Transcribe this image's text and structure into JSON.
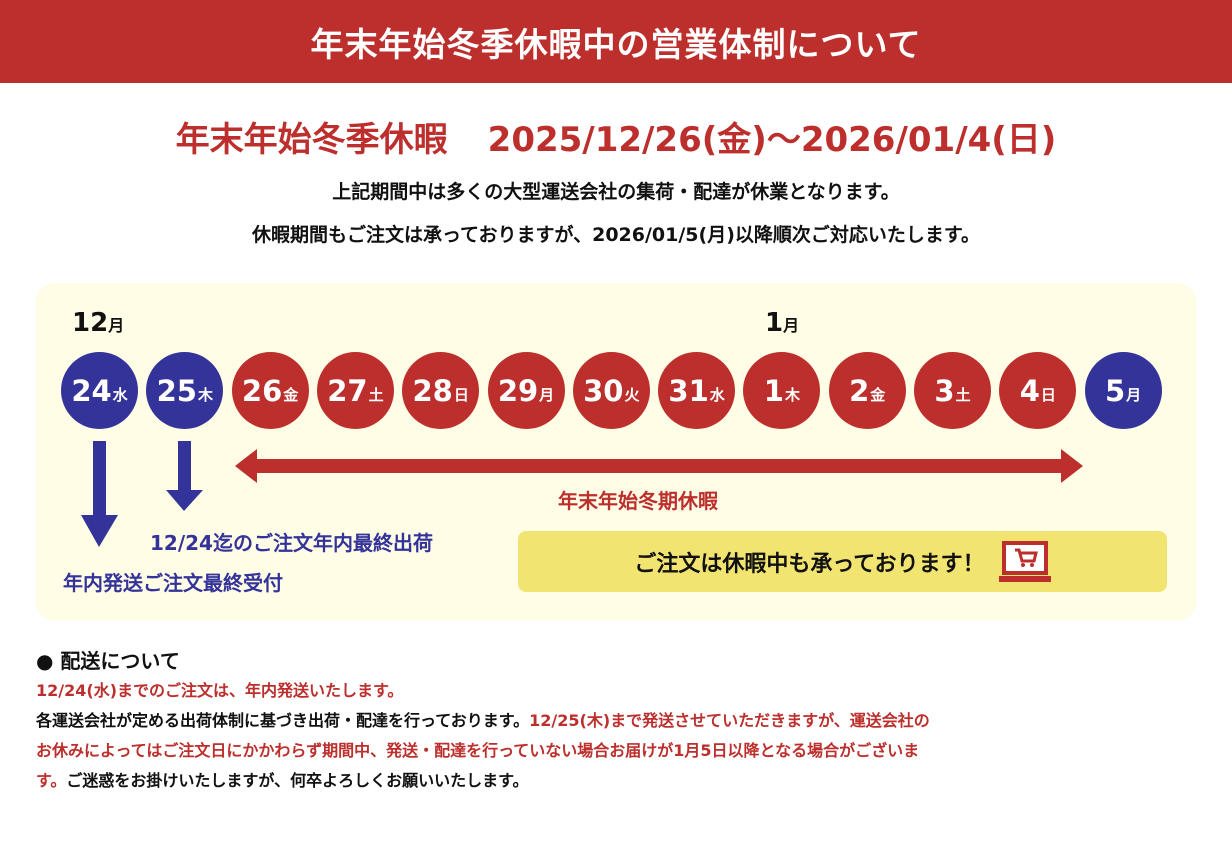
{
  "banner": {
    "title": "年末年始冬季休暇中の営業体制について"
  },
  "period": {
    "label": "年末年始冬季休暇",
    "dates": "2025/12/26(金)〜2026/01/4(日)"
  },
  "intro": [
    "上記期間中は多くの大型運送会社の集荷・配達が休業となります。",
    "休暇期間もご注文は承っておりますが、2026/01/5(月)以降順次ご対応いたします。"
  ],
  "calendar": {
    "months": [
      {
        "num": "12",
        "unit": "月"
      },
      {
        "num": "1",
        "unit": "月"
      }
    ],
    "days": [
      {
        "d": "24",
        "w": "水",
        "type": "blue"
      },
      {
        "d": "25",
        "w": "木",
        "type": "blue"
      },
      {
        "d": "26",
        "w": "金",
        "type": "red"
      },
      {
        "d": "27",
        "w": "土",
        "type": "red"
      },
      {
        "d": "28",
        "w": "日",
        "type": "red"
      },
      {
        "d": "29",
        "w": "月",
        "type": "red"
      },
      {
        "d": "30",
        "w": "火",
        "type": "red"
      },
      {
        "d": "31",
        "w": "水",
        "type": "red"
      },
      {
        "d": "1",
        "w": "木",
        "type": "red"
      },
      {
        "d": "2",
        "w": "金",
        "type": "red"
      },
      {
        "d": "3",
        "w": "土",
        "type": "red"
      },
      {
        "d": "4",
        "w": "日",
        "type": "red"
      },
      {
        "d": "5",
        "w": "月",
        "type": "blue"
      }
    ],
    "holiday_label": "年末年始冬期休暇",
    "last_ship": "12/24迄のご注文年内最終出荷",
    "last_accept": "年内発送ご注文最終受付",
    "callout": "ご注文は休暇中も承っております！",
    "callout_icon": "laptop-cart-icon"
  },
  "notes": {
    "heading": "● 配送について",
    "line1": "12/24(水)までのご注文は、年内発送いたします。",
    "line2a": "各運送会社が定める出荷体制に基づき出荷・配達を行っております。",
    "line2b": "12/25(木)まで発送させていただきますが、運送会社の",
    "line3": "お休みによってはご注文日にかかわらず期間中、発送・配達を行っていない場合お届けが1月5日以降となる場合がございま",
    "line4a": "す。",
    "line4b": "ご迷惑をお掛けいたしますが、何卒よろしくお願いいたします。"
  },
  "colors": {
    "red": "#bc2f2c",
    "blue": "#333399",
    "panel": "#fffde6",
    "callout": "#f2e471"
  }
}
